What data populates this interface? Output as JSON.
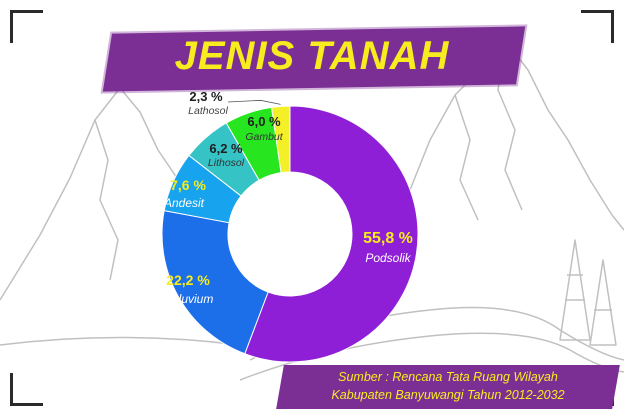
{
  "title": "JENIS TANAH",
  "source": {
    "line1": "Sumber : Rencana Tata Ruang Wilayah",
    "line2": "Kabupaten Banyuwangi Tahun 2012-2032"
  },
  "colors": {
    "title_banner": "#7b2f95",
    "title_text": "#f7ec1d"
  },
  "chart_data": {
    "type": "pie",
    "donut": true,
    "slices": [
      {
        "name": "Podsolik",
        "label": "55,8 %",
        "value": 55.8,
        "color": "#8f1fd6"
      },
      {
        "name": "Aluvium",
        "label": "22,2 %",
        "value": 22.2,
        "color": "#1c6fe8"
      },
      {
        "name": "Andesit",
        "label": "7,6 %",
        "value": 7.6,
        "color": "#18a3ef"
      },
      {
        "name": "Lithosol",
        "label": "6,2 %",
        "value": 6.2,
        "color": "#35c3c6"
      },
      {
        "name": "Gambut",
        "label": "6,0 %",
        "value": 6.0,
        "color": "#27e61f"
      },
      {
        "name": "Lathosol",
        "label": "2,3 %",
        "value": 2.3,
        "color": "#f3f028"
      }
    ]
  }
}
